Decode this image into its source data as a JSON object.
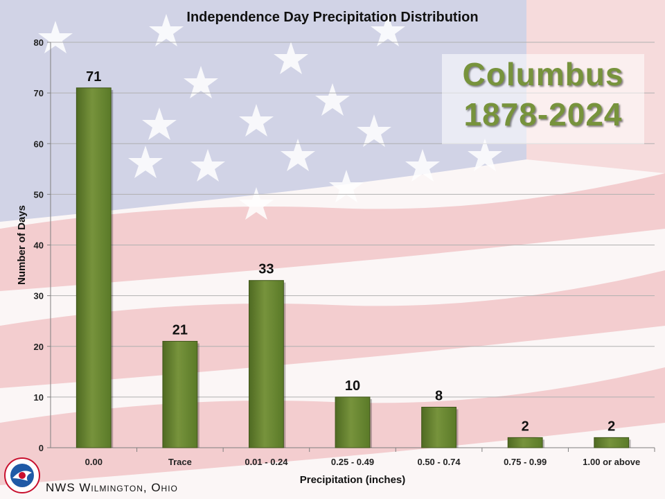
{
  "chart_data": {
    "type": "bar",
    "title": "Independence Day Precipitation Distribution",
    "xlabel": "Precipitation (inches)",
    "ylabel": "Number of Days",
    "categories": [
      "0.00",
      "Trace",
      "0.01 - 0.24",
      "0.25 - 0.49",
      "0.50 - 0.74",
      "0.75 - 0.99",
      "1.00 or above"
    ],
    "values": [
      71,
      21,
      33,
      10,
      8,
      2,
      2
    ],
    "ylim": [
      0,
      80
    ],
    "yticks": [
      0,
      10,
      20,
      30,
      40,
      50,
      60,
      70,
      80
    ],
    "grid": true,
    "bar_color": "#77933c",
    "data_labels": true
  },
  "overlay": {
    "place": "Columbus",
    "years": "1878-2024",
    "text_color": "#77933c"
  },
  "footer": {
    "office": "NWS Wilmington, Ohio",
    "logo": "nws-logo-icon"
  }
}
